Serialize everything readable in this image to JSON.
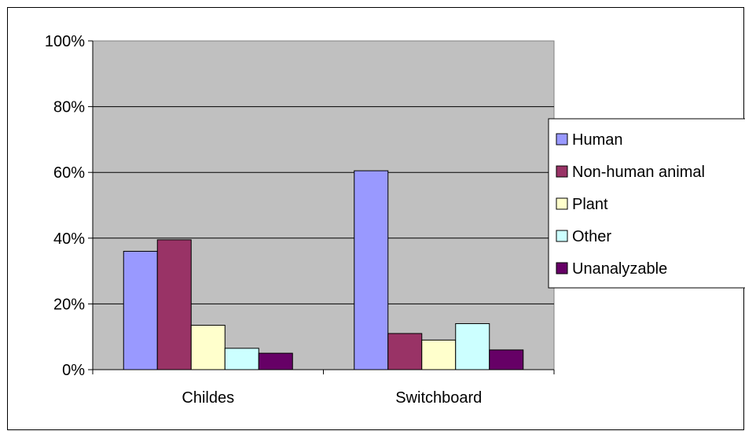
{
  "chart_data": {
    "type": "bar",
    "title": "",
    "xlabel": "",
    "ylabel": "",
    "categories": [
      "Childes",
      "Switchboard"
    ],
    "series": [
      {
        "name": "Human",
        "values": [
          36,
          60.5
        ],
        "color": "#9999ff"
      },
      {
        "name": "Non-human animal",
        "values": [
          39.5,
          11
        ],
        "color": "#993366"
      },
      {
        "name": "Plant",
        "values": [
          13.5,
          9
        ],
        "color": "#ffffcc"
      },
      {
        "name": "Other",
        "values": [
          6.5,
          14
        ],
        "color": "#ccffff"
      },
      {
        "name": "Unanalyzable",
        "values": [
          5,
          6
        ],
        "color": "#660066"
      }
    ],
    "ylim": [
      0,
      100
    ],
    "yticks": [
      "0%",
      "20%",
      "40%",
      "60%",
      "80%",
      "100%"
    ],
    "grid": true,
    "plot_background": "#c0c0c0",
    "legend_position": "right"
  }
}
